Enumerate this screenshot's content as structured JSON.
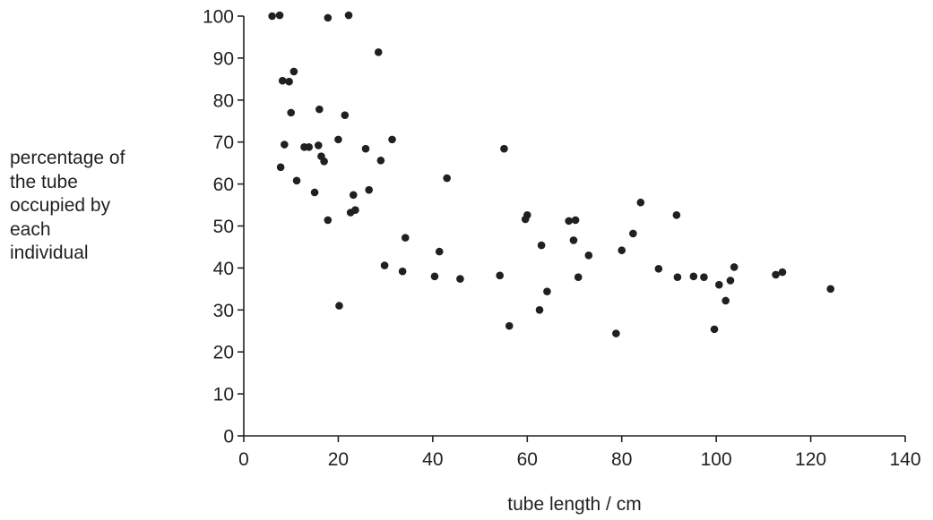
{
  "chart_data": {
    "type": "scatter",
    "title": "",
    "xlabel": "tube length / cm",
    "ylabel": "percentage of\nthe tube\noccupied by\neach\nindividual",
    "xlim": [
      0,
      140
    ],
    "ylim": [
      0,
      100
    ],
    "xticks": [
      0,
      20,
      40,
      60,
      80,
      100,
      120,
      140
    ],
    "yticks": [
      0,
      10,
      20,
      30,
      40,
      50,
      60,
      70,
      80,
      90,
      100
    ],
    "grid": false,
    "marker_color": "#231f20",
    "points": [
      [
        6,
        100
      ],
      [
        7.6,
        100.2
      ],
      [
        17.8,
        99.6
      ],
      [
        22.2,
        100.2
      ],
      [
        28.5,
        91.4
      ],
      [
        10.6,
        86.8
      ],
      [
        8.2,
        84.6
      ],
      [
        9.6,
        84.4
      ],
      [
        10,
        77
      ],
      [
        16,
        77.8
      ],
      [
        21.4,
        76.4
      ],
      [
        8.6,
        69.4
      ],
      [
        12.8,
        68.8
      ],
      [
        13.8,
        68.8
      ],
      [
        15.8,
        69.2
      ],
      [
        20,
        70.6
      ],
      [
        31.4,
        70.6
      ],
      [
        25.8,
        68.4
      ],
      [
        55.1,
        68.4
      ],
      [
        16.4,
        66.6
      ],
      [
        17,
        65.4
      ],
      [
        29,
        65.6
      ],
      [
        7.8,
        64
      ],
      [
        11.2,
        60.8
      ],
      [
        43,
        61.4
      ],
      [
        15,
        58
      ],
      [
        23.2,
        57.4
      ],
      [
        26.5,
        58.6
      ],
      [
        17.8,
        51.4
      ],
      [
        22.6,
        53.2
      ],
      [
        23.6,
        53.8
      ],
      [
        59.6,
        51.6
      ],
      [
        60,
        52.6
      ],
      [
        68.8,
        51.2
      ],
      [
        70.2,
        51.4
      ],
      [
        91.6,
        52.6
      ],
      [
        84,
        55.6
      ],
      [
        63,
        45.4
      ],
      [
        69.8,
        46.6
      ],
      [
        82.4,
        48.2
      ],
      [
        34.2,
        47.2
      ],
      [
        41.4,
        43.9
      ],
      [
        73,
        43
      ],
      [
        80,
        44.2
      ],
      [
        29.8,
        40.6
      ],
      [
        33.6,
        39.2
      ],
      [
        40.4,
        38
      ],
      [
        45.8,
        37.4
      ],
      [
        54.2,
        38.2
      ],
      [
        70.8,
        37.8
      ],
      [
        87.8,
        39.8
      ],
      [
        91.8,
        37.8
      ],
      [
        95.2,
        38
      ],
      [
        97.4,
        37.8
      ],
      [
        103.8,
        40.2
      ],
      [
        100.6,
        36
      ],
      [
        103,
        37
      ],
      [
        112.6,
        38.4
      ],
      [
        114,
        39
      ],
      [
        124.2,
        35
      ],
      [
        64.2,
        34.4
      ],
      [
        62.6,
        30
      ],
      [
        102,
        32.2
      ],
      [
        20.2,
        31
      ],
      [
        56.2,
        26.2
      ],
      [
        78.8,
        24.4
      ],
      [
        99.6,
        25.4
      ]
    ]
  }
}
